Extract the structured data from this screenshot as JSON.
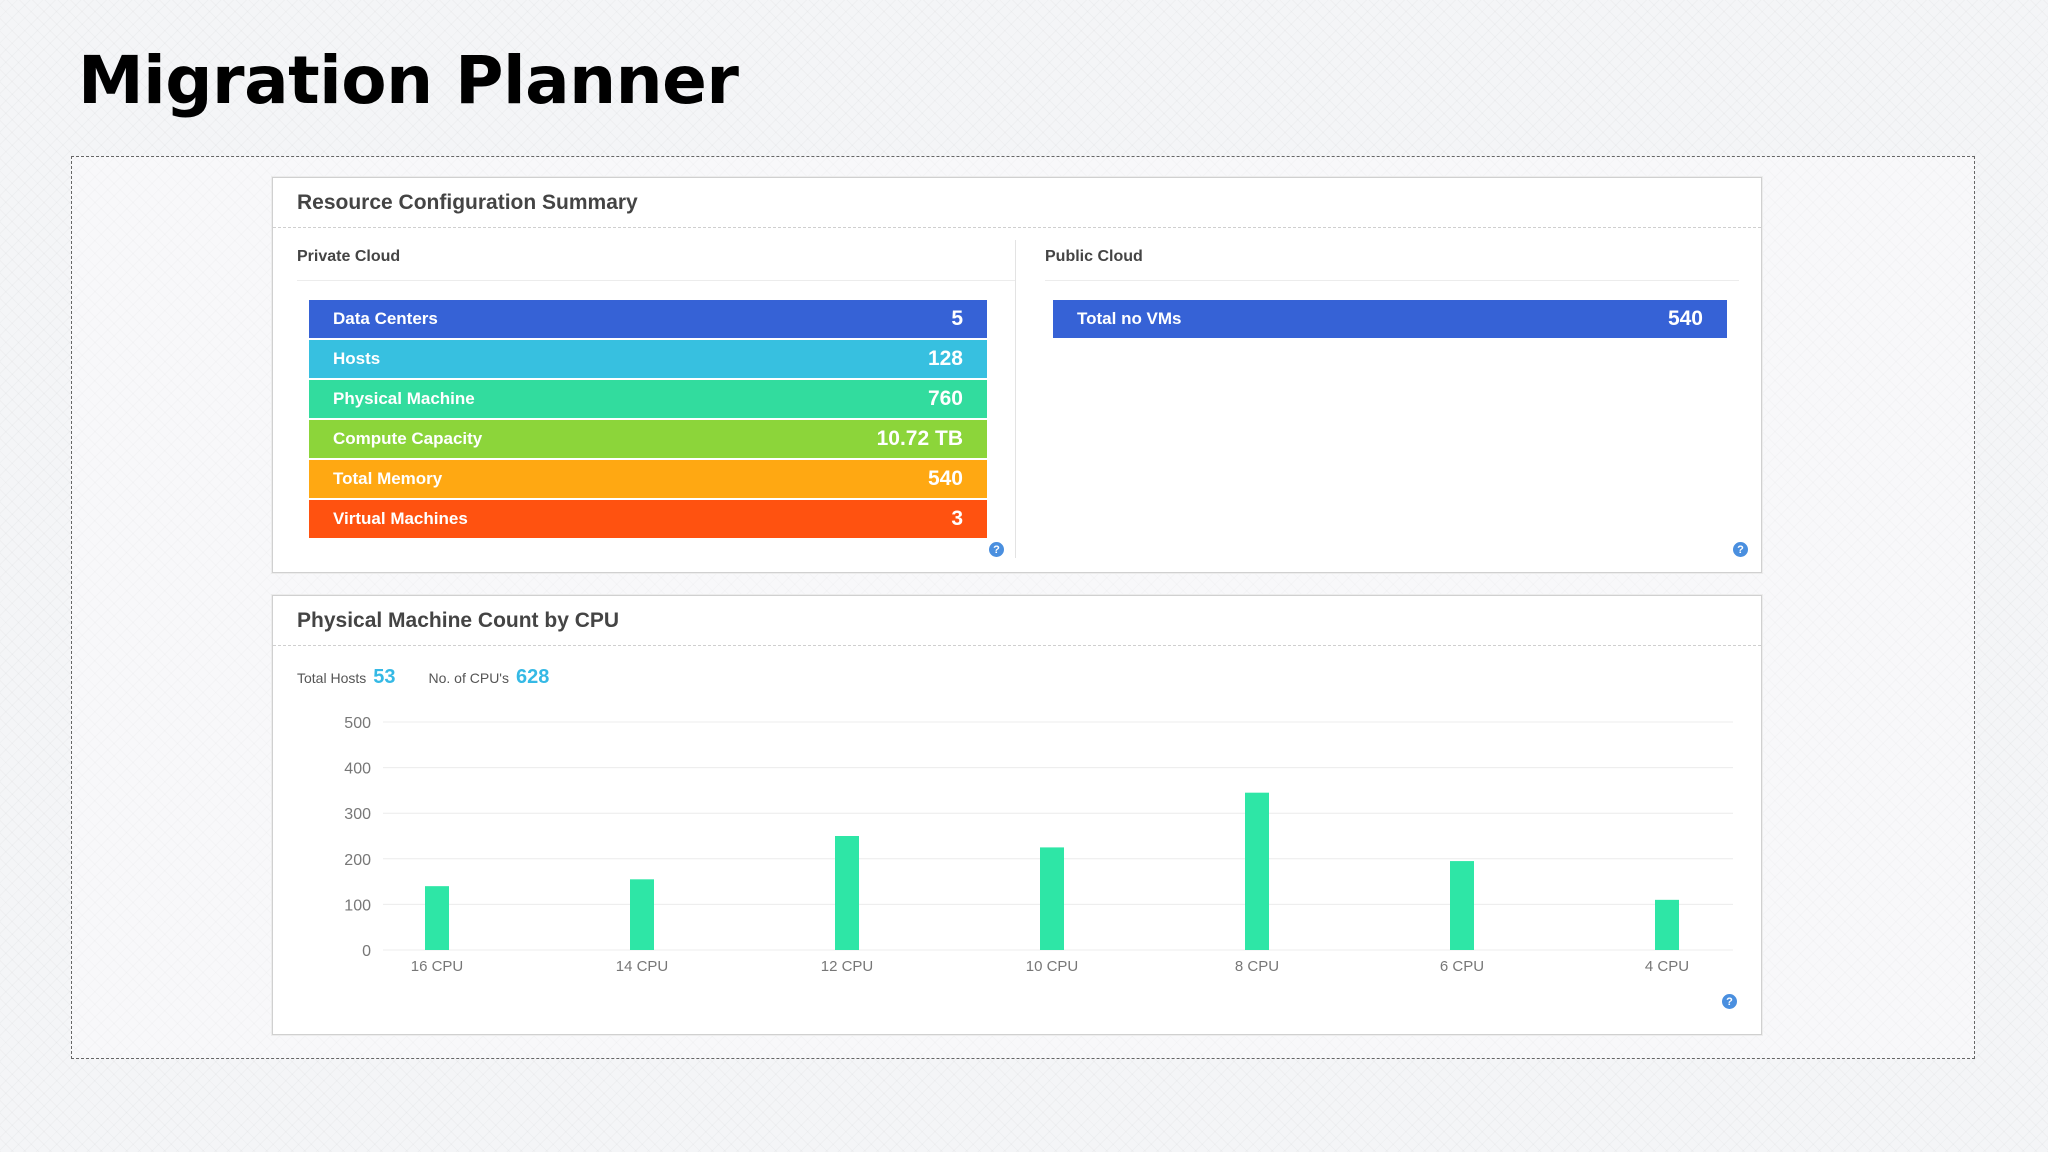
{
  "page": {
    "title": "Migration Planner"
  },
  "resource_summary": {
    "title": "Resource Configuration Summary",
    "private_cloud": {
      "title": "Private Cloud",
      "rows": [
        {
          "label": "Data Centers",
          "value": "5",
          "color": "#3662d6"
        },
        {
          "label": "Hosts",
          "value": "128",
          "color": "#37c0e0"
        },
        {
          "label": "Physical Machine",
          "value": "760",
          "color": "#32dc9e"
        },
        {
          "label": "Compute Capacity",
          "value": "10.72 TB",
          "color": "#8cd53a"
        },
        {
          "label": "Total Memory",
          "value": "540",
          "color": "#ffa812"
        },
        {
          "label": "Virtual Machines",
          "value": "3",
          "color": "#ff5210"
        }
      ]
    },
    "public_cloud": {
      "title": "Public Cloud",
      "rows": [
        {
          "label": "Total no VMs",
          "value": "540",
          "color": "#3662d6"
        }
      ]
    },
    "help_icon": "help-circle-icon"
  },
  "cpu_panel": {
    "title": "Physical Machine Count by CPU",
    "total_hosts_label": "Total Hosts",
    "total_hosts_value": "53",
    "cpus_label": "No. of CPU's",
    "cpus_value": "628",
    "help_icon": "help-circle-icon"
  },
  "chart_data": {
    "type": "bar",
    "categories": [
      "16 CPU",
      "14 CPU",
      "12 CPU",
      "10 CPU",
      "8 CPU",
      "6 CPU",
      "4 CPU"
    ],
    "values": [
      140,
      155,
      250,
      225,
      345,
      195,
      110
    ],
    "yticks": [
      0,
      100,
      200,
      300,
      400,
      500
    ],
    "ylim": [
      0,
      500
    ],
    "xlabel": "",
    "ylabel": "",
    "grid": true,
    "bar_color": "#2ee6a6"
  }
}
